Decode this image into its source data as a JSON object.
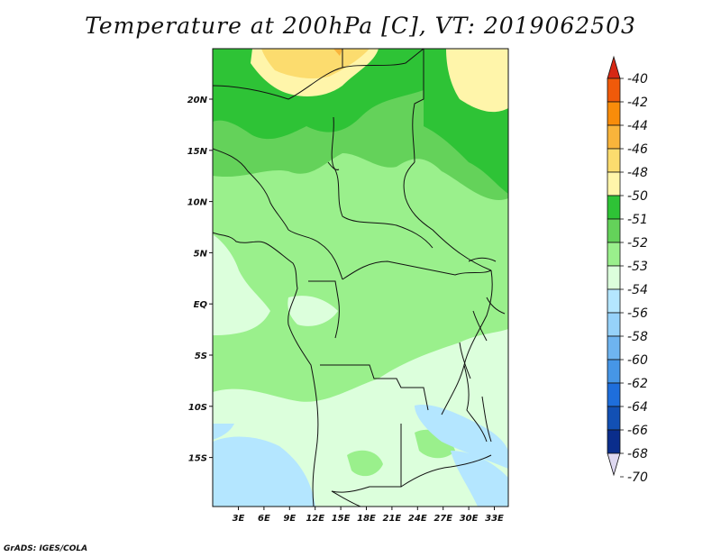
{
  "title": "Temperature at 200hPa [C], VT: 2019062503",
  "credit": "GrADS: IGES/COLA",
  "lat_labels": [
    "20N",
    "15N",
    "10N",
    "5N",
    "EQ",
    "5S",
    "10S",
    "15S"
  ],
  "lon_labels": [
    "3E",
    "6E",
    "9E",
    "12E",
    "15E",
    "18E",
    "21E",
    "24E",
    "27E",
    "30E",
    "33E"
  ],
  "colorbar": {
    "labels": [
      "-40",
      "-42",
      "-44",
      "-46",
      "-48",
      "-50",
      "-51",
      "-52",
      "-53",
      "-54",
      "-56",
      "-58",
      "-60",
      "-62",
      "-64",
      "-66",
      "-68",
      "-70"
    ],
    "colors": [
      "#d62814",
      "#f05a0a",
      "#f88c0a",
      "#f9b43b",
      "#fcdc6e",
      "#fff5aa",
      "#2ec336",
      "#64d25a",
      "#9af08c",
      "#dcffdc",
      "#b4e6ff",
      "#96d2fa",
      "#6eb4f0",
      "#4696e6",
      "#1e6edc",
      "#1250b4",
      "#0a2d8c",
      "#ded8f0"
    ],
    "unit": "C"
  },
  "map_region": "Central Africa",
  "lat_range": [
    -20,
    24.5
  ],
  "lon_range": [
    0,
    34.5
  ]
}
